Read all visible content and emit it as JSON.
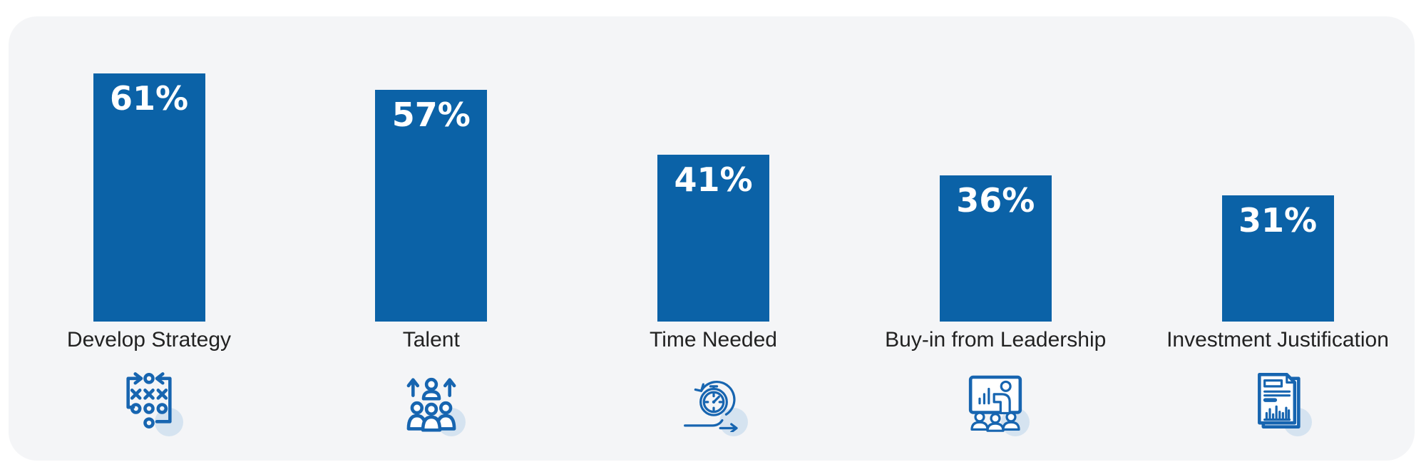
{
  "card": {
    "background": "#F4F5F7",
    "page_background": "#FFFFFF"
  },
  "chart_data": {
    "type": "bar",
    "title": "",
    "xlabel": "",
    "ylabel": "",
    "categories": [
      "Develop Strategy",
      "Talent",
      "Time Needed",
      "Buy-in from Leadership",
      "Investment Justification"
    ],
    "values": [
      61,
      57,
      41,
      36,
      31
    ],
    "value_labels": [
      "61%",
      "57%",
      "41%",
      "36%",
      "31%"
    ],
    "ylim": [
      0,
      75
    ],
    "grid": false,
    "legend": "none",
    "axis_lines": "none",
    "bar_color": "#0B62A7",
    "value_label_color": "#FFFFFF",
    "category_label_color": "#222222",
    "icons": [
      "strategy-icon",
      "talent-icon",
      "time-icon",
      "presentation-icon",
      "report-icon"
    ],
    "icon_stroke_color": "#1765B0",
    "icon_halo_color": "#D5E3F0"
  }
}
